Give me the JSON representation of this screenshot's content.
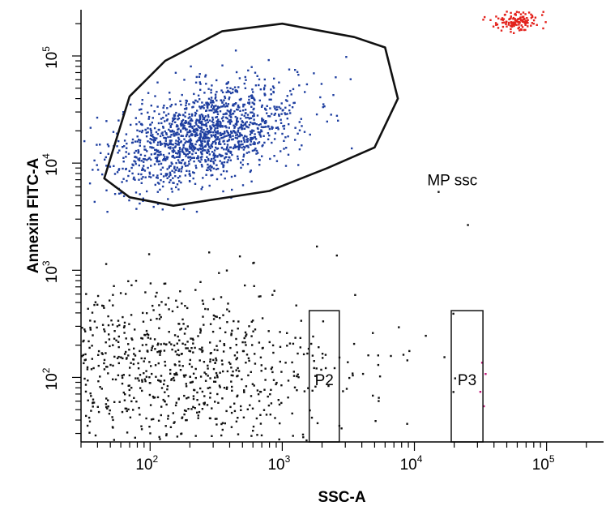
{
  "chart_data": {
    "type": "scatter",
    "title": "",
    "xlabel": "SSC-A",
    "ylabel": "Annexin FITC-A",
    "x_scale": "log",
    "y_scale": "log",
    "xlim": [
      30,
      270000
    ],
    "ylim": [
      25,
      270000
    ],
    "x_ticks": [
      {
        "value": 100,
        "base": "10",
        "exp": "2"
      },
      {
        "value": 1000,
        "base": "10",
        "exp": "3"
      },
      {
        "value": 10000,
        "base": "10",
        "exp": "4"
      },
      {
        "value": 100000,
        "base": "10",
        "exp": "5"
      }
    ],
    "y_ticks": [
      {
        "value": 100,
        "base": "10",
        "exp": "2"
      },
      {
        "value": 1000,
        "base": "10",
        "exp": "3"
      },
      {
        "value": 10000,
        "base": "10",
        "exp": "4"
      },
      {
        "value": 100000,
        "base": "10",
        "exp": "5"
      }
    ],
    "grid": false,
    "legend": "none",
    "colors": {
      "gated_events": "#1f3fa0",
      "ungated_events": "#111111",
      "saturated_events": "#e3221c",
      "p3_events": "#c2187a",
      "gate_outline": "#111111"
    },
    "gates": [
      {
        "name": "MP ssc",
        "shape": "polygon",
        "vertices": [
          [
            45,
            7200
          ],
          [
            70,
            42000
          ],
          [
            130,
            90000
          ],
          [
            350,
            170000
          ],
          [
            1000,
            200000
          ],
          [
            3500,
            150000
          ],
          [
            6000,
            120000
          ],
          [
            7500,
            40000
          ],
          [
            5000,
            14000
          ],
          [
            2200,
            9000
          ],
          [
            800,
            5500
          ],
          [
            150,
            4000
          ],
          [
            70,
            4800
          ],
          [
            45,
            7200
          ]
        ]
      },
      {
        "name": "P2",
        "shape": "rectangle",
        "x_range": [
          1600,
          2700
        ],
        "y_range": [
          25,
          420
        ]
      },
      {
        "name": "P3",
        "shape": "rectangle",
        "x_range": [
          19000,
          33000
        ],
        "y_range": [
          25,
          420
        ]
      }
    ],
    "populations": [
      {
        "group": "gated_events",
        "count": 1500,
        "center": [
          260,
          19000
        ],
        "spread_log10": [
          0.34,
          0.24
        ]
      },
      {
        "group": "ungated_events",
        "count": 950,
        "center": [
          120,
          110
        ],
        "spread_log10": [
          0.7,
          0.4
        ]
      },
      {
        "group": "saturated_events",
        "count": 130,
        "center": [
          60000,
          220000
        ],
        "spread_log10": [
          0.08,
          0.05
        ]
      }
    ],
    "marked_points": [
      {
        "group": "ungated_events",
        "x": 15000,
        "y": 5500
      },
      {
        "group": "ungated_events",
        "x": 25000,
        "y": 2700
      },
      {
        "group": "ungated_events",
        "x": 600,
        "y": 1200
      },
      {
        "group": "ungated_events",
        "x": 1800,
        "y": 1700
      },
      {
        "group": "ungated_events",
        "x": 7500,
        "y": 300
      },
      {
        "group": "ungated_events",
        "x": 12000,
        "y": 250
      },
      {
        "group": "ungated_events",
        "x": 2200,
        "y": 85
      },
      {
        "group": "ungated_events",
        "x": 5000,
        "y": 40
      },
      {
        "group": "ungated_events",
        "x": 9000,
        "y": 180
      },
      {
        "group": "ungated_events",
        "x": 3500,
        "y": 600
      },
      {
        "group": "gated_events",
        "x": 1300,
        "y": 9800
      },
      {
        "group": "gated_events",
        "x": 3000,
        "y": 100000
      },
      {
        "group": "gated_events",
        "x": 3300,
        "y": 14000
      },
      {
        "group": "p3_events",
        "x": 32000,
        "y": 140
      },
      {
        "group": "p3_events",
        "x": 34000,
        "y": 110
      },
      {
        "group": "p3_events",
        "x": 31000,
        "y": 75
      },
      {
        "group": "p3_events",
        "x": 33000,
        "y": 55
      },
      {
        "group": "ungated_events",
        "x": 20000,
        "y": 100
      }
    ]
  }
}
